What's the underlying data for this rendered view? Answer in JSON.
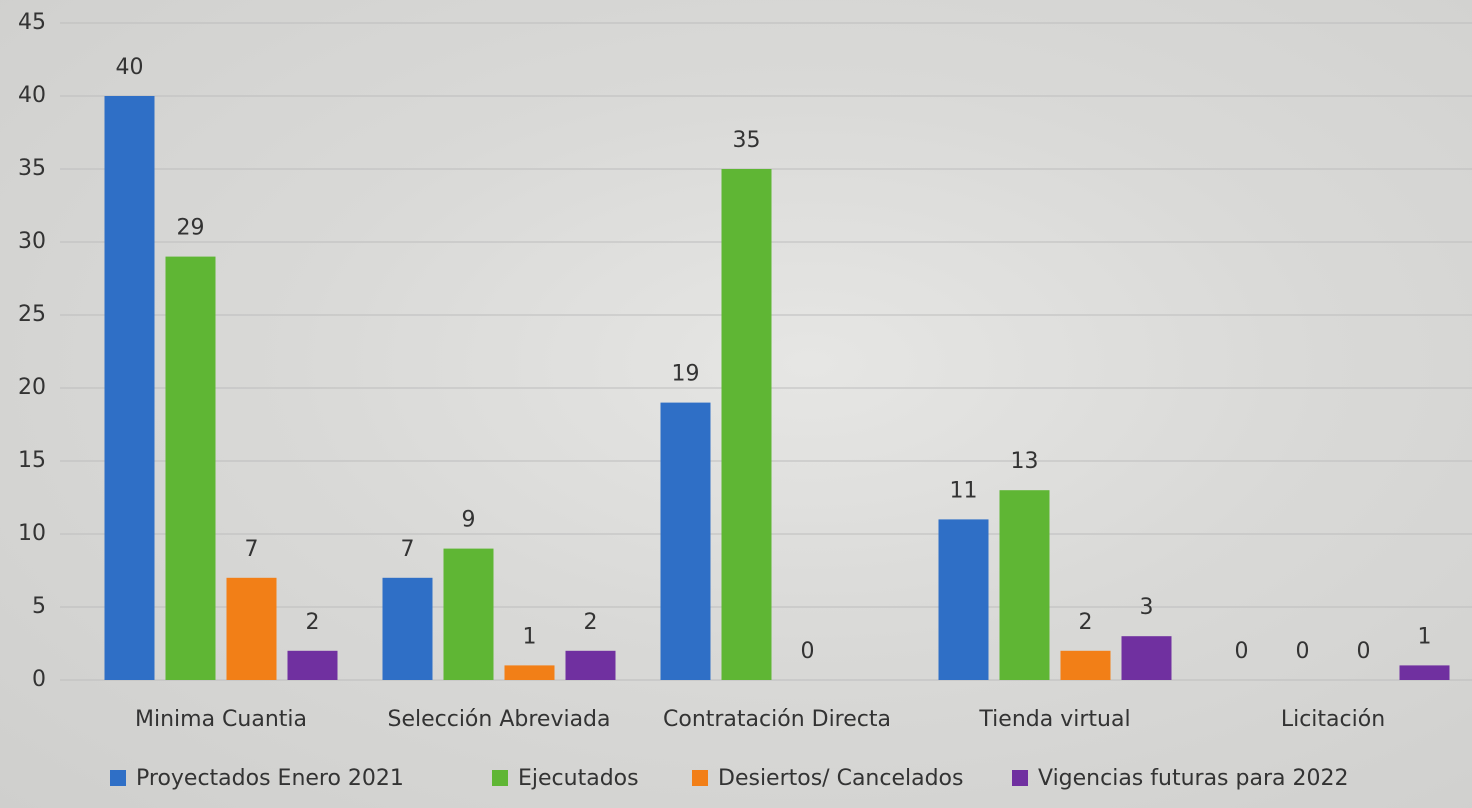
{
  "chart_data": {
    "type": "bar",
    "categories": [
      "Minima Cuantia",
      "Selección Abreviada",
      "Contratación Directa",
      "Tienda virtual",
      "Licitación"
    ],
    "series": [
      {
        "name": "Proyectados Enero 2021",
        "color": "#2f6fc6",
        "values": [
          40,
          7,
          19,
          11,
          0
        ]
      },
      {
        "name": "Ejecutados",
        "color": "#5fb634",
        "values": [
          29,
          9,
          35,
          13,
          0
        ]
      },
      {
        "name": "Desiertos/ Cancelados",
        "color": "#f27f17",
        "values": [
          7,
          1,
          0,
          2,
          0
        ]
      },
      {
        "name": "Vigencias futuras para 2022",
        "color": "#7030a0",
        "values": [
          2,
          2,
          null,
          3,
          1
        ]
      }
    ],
    "ylim": [
      0,
      45
    ],
    "yticks": [
      0,
      5,
      10,
      15,
      20,
      25,
      30,
      35,
      40,
      45
    ],
    "grid": true,
    "legend": "bottom"
  }
}
